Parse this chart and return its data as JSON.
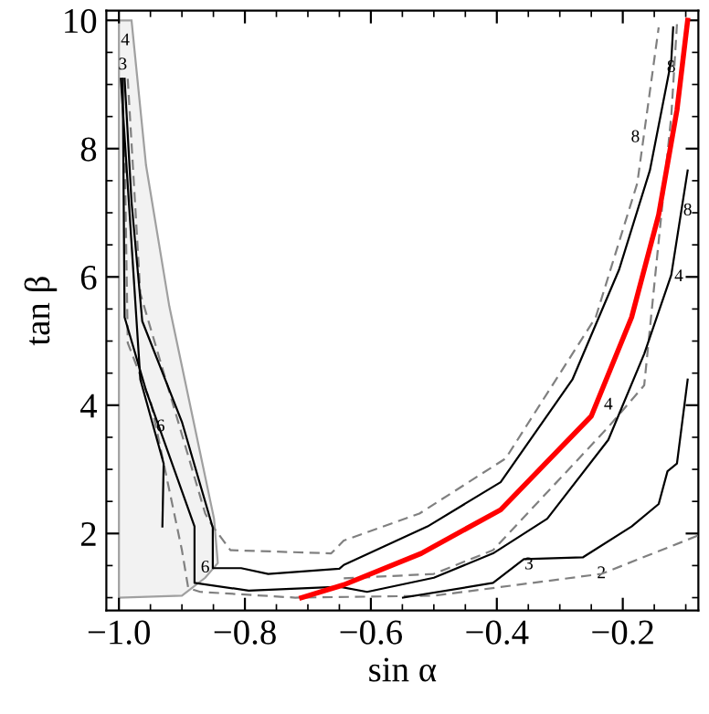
{
  "chart_data": {
    "type": "line",
    "xlabel": "sin α",
    "ylabel": "tan β",
    "xlim": [
      -1.02,
      -0.08
    ],
    "ylim": [
      0.8,
      10.15
    ],
    "xticks": [
      {
        "value": -1.0,
        "label": "−1.0"
      },
      {
        "value": -0.8,
        "label": "−0.8"
      },
      {
        "value": -0.6,
        "label": "−0.6"
      },
      {
        "value": -0.4,
        "label": "−0.4"
      },
      {
        "value": -0.2,
        "label": "−0.2"
      }
    ],
    "yticks": [
      2,
      4,
      6,
      8,
      10
    ],
    "grid": false,
    "legend": false,
    "series": [
      {
        "type": "area",
        "color": "#f2f2f2",
        "x": [
          -1.0,
          -0.98,
          -0.957,
          -0.92,
          -0.849,
          -0.843,
          -0.863,
          -0.9,
          -1.0
        ],
        "values": [
          10,
          10,
          7.74,
          5.54,
          2.23,
          1.54,
          1.31,
          1.03,
          1.0
        ]
      },
      {
        "color": "#808080",
        "line_style": "dashed",
        "x": [
          -0.991,
          -0.986,
          -0.949,
          -0.9,
          -0.89,
          -0.871,
          -0.72,
          -0.5,
          -0.234,
          -0.08
        ],
        "values": [
          8.03,
          4.97,
          4.03,
          1.74,
          1.15,
          1.09,
          1.0,
          1.03,
          1.37,
          1.97
        ]
      },
      {
        "color": "#808080",
        "line_style": "dashed",
        "x": [
          -0.986,
          -0.966,
          -0.863,
          -0.851,
          -0.823,
          -0.663,
          -0.643,
          -0.523,
          -0.386,
          -0.243,
          -0.177,
          -0.143
        ],
        "values": [
          9.09,
          5.74,
          2.31,
          2.11,
          1.74,
          1.69,
          1.89,
          2.31,
          3.17,
          5.37,
          7.46,
          9.89
        ]
      },
      {
        "color": "#808080",
        "line_style": "dashed",
        "x": [
          -0.643,
          -0.5,
          -0.406,
          -0.223,
          -0.166,
          -0.123,
          -0.114
        ],
        "values": [
          1.3,
          1.37,
          1.74,
          3.66,
          4.31,
          8.51,
          9.94
        ]
      },
      {
        "color": "#000000",
        "line_style": "solid",
        "x": [
          -0.997,
          -0.966,
          -0.929,
          -0.931
        ],
        "values": [
          9.09,
          4.4,
          3.09,
          2.11
        ]
      },
      {
        "color": "#000000",
        "line_style": "solid",
        "x": [
          -0.994,
          -0.991,
          -0.957,
          -0.88,
          -0.88,
          -0.794,
          -0.65,
          -0.606,
          -0.5,
          -0.406,
          -0.32,
          -0.223,
          -0.166,
          -0.123,
          -0.097
        ],
        "values": [
          9.09,
          5.37,
          4.23,
          2.11,
          1.23,
          1.11,
          1.17,
          1.09,
          1.31,
          1.69,
          2.23,
          3.46,
          4.8,
          6.03,
          7.66
        ]
      },
      {
        "color": "#000000",
        "line_style": "solid",
        "x": [
          -0.991,
          -0.98,
          -0.963,
          -0.9,
          -0.851,
          -0.851,
          -0.806,
          -0.763,
          -0.65,
          -0.643,
          -0.51,
          -0.394,
          -0.28,
          -0.206,
          -0.157,
          -0.123,
          -0.12
        ],
        "values": [
          9.09,
          7.17,
          5.31,
          3.74,
          2.09,
          1.46,
          1.46,
          1.37,
          1.45,
          1.51,
          2.11,
          2.8,
          4.4,
          6.11,
          7.66,
          9.37,
          9.89
        ]
      },
      {
        "color": "#000000",
        "line_style": "solid",
        "x": [
          -0.549,
          -0.406,
          -0.357,
          -0.263,
          -0.186,
          -0.143,
          -0.129,
          -0.114,
          -0.097
        ],
        "values": [
          1.0,
          1.23,
          1.6,
          1.63,
          2.11,
          2.46,
          2.97,
          3.09,
          4.4
        ]
      },
      {
        "color": "#ff0000",
        "line_style": "solid",
        "x": [
          -0.71,
          -0.643,
          -0.52,
          -0.394,
          -0.25,
          -0.186,
          -0.143,
          -0.114,
          -0.097
        ],
        "values": [
          1.0,
          1.2,
          1.69,
          2.37,
          3.83,
          5.37,
          6.97,
          8.6,
          10.0
        ]
      }
    ],
    "annotations": [
      {
        "text": "3",
        "x": -0.349,
        "y": 1.51
      },
      {
        "text": "2",
        "x": -0.234,
        "y": 1.37
      },
      {
        "text": "4",
        "x": -0.223,
        "y": 4.0
      },
      {
        "text": "8",
        "x": -0.18,
        "y": 8.17
      },
      {
        "text": "8",
        "x": -0.123,
        "y": 9.26
      },
      {
        "text": "8",
        "x": -0.097,
        "y": 7.03
      },
      {
        "text": "4",
        "x": -0.111,
        "y": 6.0
      },
      {
        "text": "3",
        "x": -0.994,
        "y": 9.3
      },
      {
        "text": "4",
        "x": -0.99,
        "y": 9.68
      },
      {
        "text": "6",
        "x": -0.934,
        "y": 3.66
      },
      {
        "text": "6",
        "x": -0.863,
        "y": 1.46
      }
    ]
  }
}
